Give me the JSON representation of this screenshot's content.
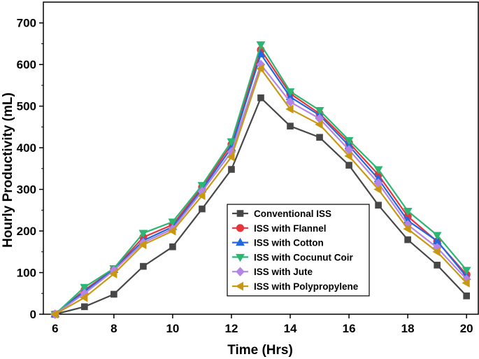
{
  "chart_data": {
    "type": "line",
    "xlabel": "Time (Hrs)",
    "ylabel": "Hourly Productivity (mL)",
    "xlim": [
      5.6,
      20.4
    ],
    "ylim": [
      0,
      750
    ],
    "xticks": [
      6,
      8,
      10,
      12,
      14,
      16,
      18,
      20
    ],
    "yticks": [
      0,
      100,
      200,
      300,
      400,
      500,
      600,
      700
    ],
    "x": [
      6,
      7,
      8,
      9,
      10,
      11,
      12,
      13,
      14,
      15,
      16,
      17,
      18,
      19,
      20
    ],
    "legend_position": "center-right",
    "grid": false,
    "series": [
      {
        "name": "Conventional ISS",
        "color": "#474747",
        "marker": "square",
        "values": [
          0,
          18,
          48,
          115,
          162,
          253,
          348,
          520,
          452,
          425,
          358,
          262,
          179,
          118,
          44
        ]
      },
      {
        "name": "ISS with Flannel",
        "color": "#e8343b",
        "marker": "circle",
        "values": [
          0,
          58,
          108,
          185,
          215,
          305,
          408,
          635,
          530,
          482,
          412,
          335,
          235,
          175,
          95
        ]
      },
      {
        "name": "ISS with Cotton",
        "color": "#2068df",
        "marker": "triangle-up",
        "values": [
          0,
          55,
          107,
          177,
          210,
          300,
          400,
          625,
          522,
          478,
          405,
          325,
          225,
          176,
          90
        ]
      },
      {
        "name": "ISS with Cocunut Coir",
        "color": "#2bb673",
        "marker": "triangle-down",
        "values": [
          0,
          65,
          110,
          195,
          222,
          310,
          415,
          648,
          535,
          490,
          418,
          348,
          248,
          190,
          106
        ]
      },
      {
        "name": "ISS with Jute",
        "color": "#b584e6",
        "marker": "diamond",
        "values": [
          0,
          50,
          105,
          172,
          205,
          295,
          390,
          600,
          510,
          470,
          395,
          315,
          215,
          160,
          84
        ]
      },
      {
        "name": "ISS with Polypropylene",
        "color": "#c99812",
        "marker": "triangle-left",
        "values": [
          0,
          40,
          97,
          167,
          200,
          285,
          378,
          590,
          493,
          456,
          380,
          300,
          205,
          150,
          75
        ]
      }
    ]
  }
}
